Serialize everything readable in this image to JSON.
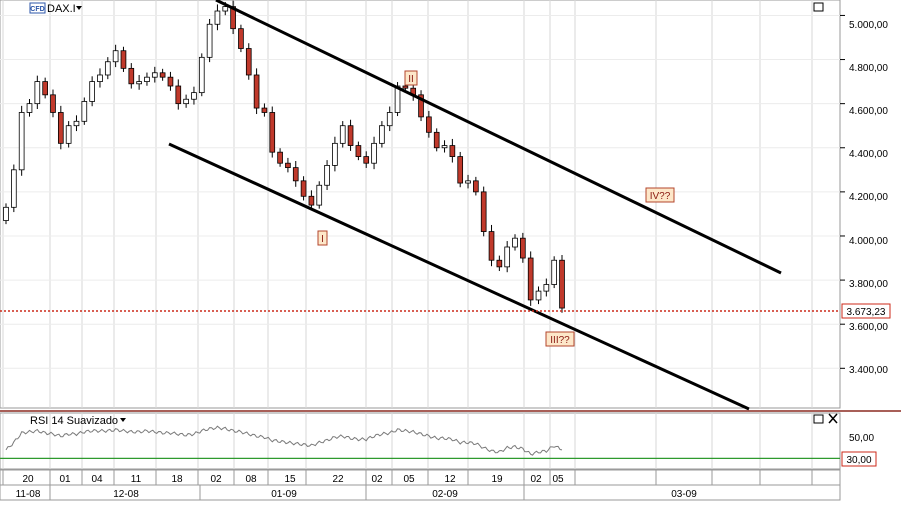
{
  "instrument": {
    "badge": "CFD",
    "name": "DAX.I"
  },
  "price_axis": {
    "ticks": [
      "5.000,00",
      "4.800,00",
      "4.600,00",
      "4.400,00",
      "4.200,00",
      "4.000,00",
      "3.800,00",
      "3.600,00",
      "3.400,00"
    ],
    "last_price_label": "3.673,23"
  },
  "rsi": {
    "title": "RSI 14 Suavizado",
    "ticks": [
      "50,00",
      "30,00"
    ]
  },
  "date_axis": {
    "days": [
      "20",
      "01",
      "04",
      "11",
      "18",
      "02",
      "08",
      "15",
      "22",
      "02",
      "05",
      "12",
      "19",
      "02",
      "05"
    ],
    "months": [
      "11-08",
      "12-08",
      "01-09",
      "02-09",
      "03-09"
    ]
  },
  "wave_labels": [
    "I",
    "II",
    "III??",
    "IV??"
  ],
  "colors": {
    "bull_candle": "#ffffff",
    "bear_candle": "#c0392b",
    "channel": "#000000",
    "price_line": "#cc2a1a",
    "rsi_line": "#7a7a7a",
    "rsi_threshold": "#2e9a2e",
    "wave_box_fill": "#fde7c9",
    "wave_box_stroke": "#b3452c"
  },
  "chart_data": {
    "type": "candlestick",
    "symbol": "DAX.I",
    "x": [
      "2008-11-20",
      "2008-11-21",
      "2008-11-24",
      "2008-11-25",
      "2008-11-26",
      "2008-11-27",
      "2008-11-28",
      "2008-12-01",
      "2008-12-02",
      "2008-12-03",
      "2008-12-04",
      "2008-12-05",
      "2008-12-08",
      "2008-12-09",
      "2008-12-10",
      "2008-12-11",
      "2008-12-12",
      "2008-12-15",
      "2008-12-16",
      "2008-12-17",
      "2008-12-18",
      "2008-12-19",
      "2008-12-22",
      "2008-12-23",
      "2008-12-29",
      "2008-12-30",
      "2009-01-02",
      "2009-01-05",
      "2009-01-06",
      "2009-01-07",
      "2009-01-08",
      "2009-01-09",
      "2009-01-12",
      "2009-01-13",
      "2009-01-14",
      "2009-01-15",
      "2009-01-16",
      "2009-01-19",
      "2009-01-20",
      "2009-01-21",
      "2009-01-22",
      "2009-01-23",
      "2009-01-26",
      "2009-01-27",
      "2009-01-28",
      "2009-01-29",
      "2009-01-30",
      "2009-02-02",
      "2009-02-03",
      "2009-02-04",
      "2009-02-05",
      "2009-02-06",
      "2009-02-09",
      "2009-02-10",
      "2009-02-11",
      "2009-02-12",
      "2009-02-13",
      "2009-02-16",
      "2009-02-17",
      "2009-02-18",
      "2009-02-19",
      "2009-02-20",
      "2009-02-23",
      "2009-02-24",
      "2009-02-25",
      "2009-02-26",
      "2009-02-27",
      "2009-03-02",
      "2009-03-03",
      "2009-03-04",
      "2009-03-05",
      "2009-03-06"
    ],
    "values": [
      4130,
      4300,
      4560,
      4600,
      4700,
      4640,
      4560,
      4420,
      4500,
      4520,
      4610,
      4700,
      4730,
      4790,
      4840,
      4760,
      4690,
      4700,
      4720,
      4740,
      4720,
      4680,
      4600,
      4620,
      4650,
      4810,
      4960,
      5020,
      5040,
      4940,
      4850,
      4730,
      4580,
      4560,
      4380,
      4330,
      4310,
      4250,
      4180,
      4140,
      4230,
      4320,
      4420,
      4500,
      4410,
      4360,
      4330,
      4420,
      4500,
      4560,
      4680,
      4670,
      4640,
      4540,
      4470,
      4400,
      4410,
      4360,
      4240,
      4250,
      4200,
      4020,
      3890,
      3860,
      3950,
      3990,
      3900,
      3710,
      3750,
      3780,
      3890,
      3673.23
    ],
    "ohlc_fields": [
      "close"
    ],
    "ylim": [
      3220,
      5070
    ],
    "last_price": 3673.23,
    "channel_upper_touches": [
      "I",
      "II",
      "IV??"
    ],
    "rsi_series": [
      38,
      45,
      54,
      55,
      56,
      54,
      53,
      51,
      53,
      53,
      55,
      56,
      56,
      56,
      57,
      56,
      55,
      55,
      56,
      55,
      54,
      54,
      53,
      52,
      53,
      56,
      58,
      59,
      58,
      56,
      55,
      53,
      51,
      50,
      47,
      46,
      45,
      44,
      43,
      42,
      45,
      47,
      50,
      51,
      49,
      48,
      48,
      51,
      53,
      54,
      57,
      56,
      55,
      53,
      51,
      49,
      49,
      48,
      45,
      45,
      44,
      40,
      37,
      36,
      40,
      41,
      39,
      34,
      36,
      37,
      42,
      38
    ],
    "rsi_ylim": [
      20,
      70
    ],
    "rsi_threshold": 30
  }
}
